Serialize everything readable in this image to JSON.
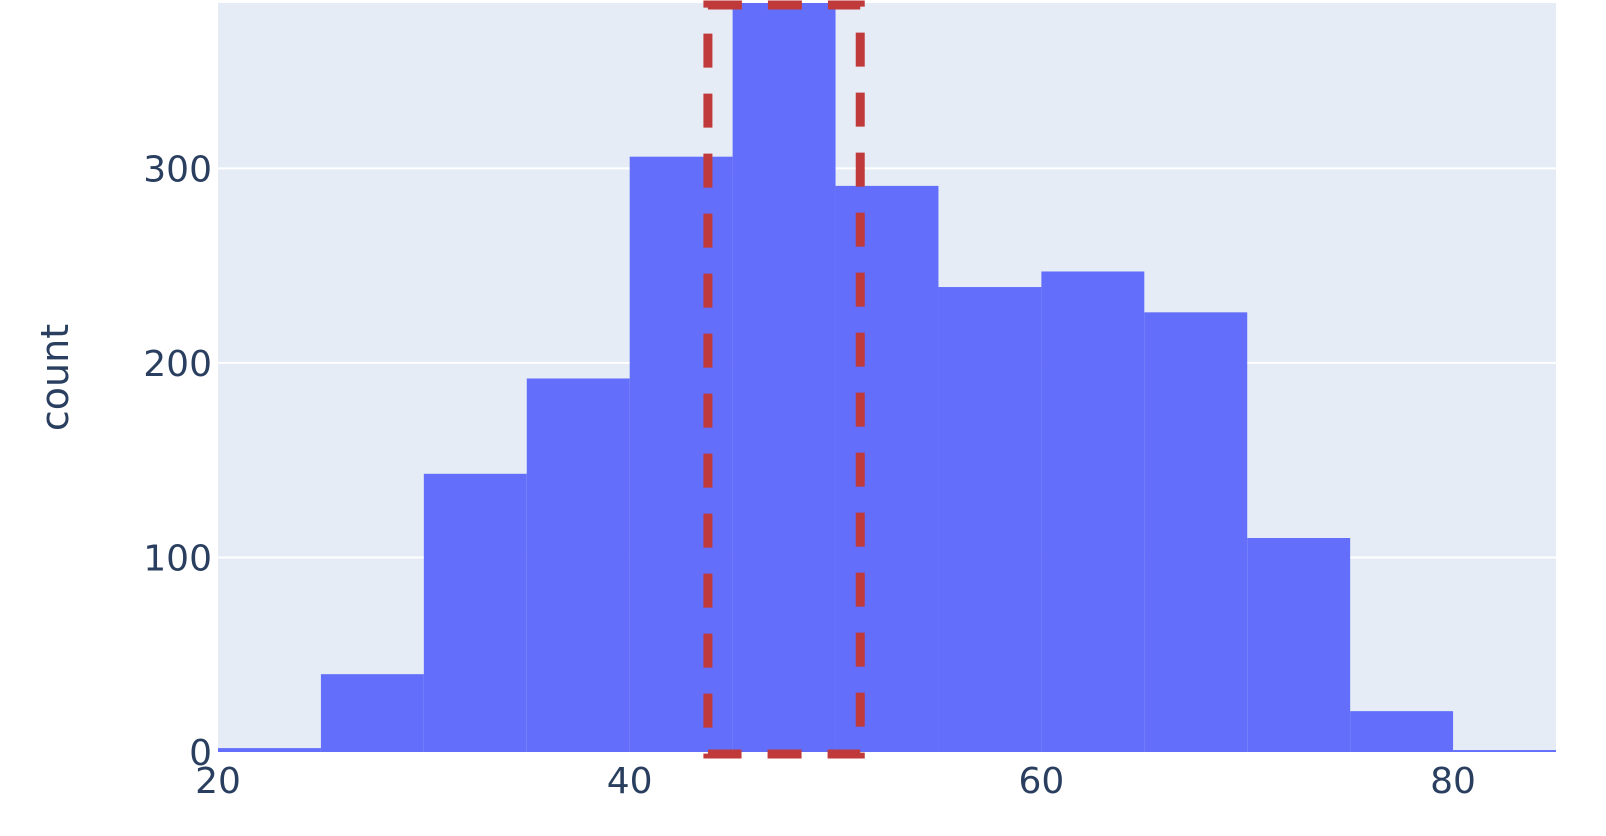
{
  "chart_data": {
    "type": "bar",
    "variant": "histogram",
    "ylabel": "count",
    "xlabel": "",
    "x_ticks": [
      20,
      40,
      60,
      80
    ],
    "y_ticks": [
      0,
      100,
      200,
      300
    ],
    "xlim": [
      20,
      85
    ],
    "ylim": [
      0,
      385
    ],
    "grid": true,
    "bins": [
      {
        "start": 20,
        "end": 25,
        "value": 2
      },
      {
        "start": 25,
        "end": 30,
        "value": 40
      },
      {
        "start": 30,
        "end": 35,
        "value": 143
      },
      {
        "start": 35,
        "end": 40,
        "value": 192
      },
      {
        "start": 40,
        "end": 45,
        "value": 306
      },
      {
        "start": 45,
        "end": 50,
        "value": 385
      },
      {
        "start": 50,
        "end": 55,
        "value": 291
      },
      {
        "start": 55,
        "end": 60,
        "value": 239
      },
      {
        "start": 60,
        "end": 65,
        "value": 247
      },
      {
        "start": 65,
        "end": 70,
        "value": 226
      },
      {
        "start": 70,
        "end": 75,
        "value": 110
      },
      {
        "start": 75,
        "end": 80,
        "value": 21
      },
      {
        "start": 80,
        "end": 85,
        "value": 1
      }
    ],
    "highlight": {
      "x_start": 43.8,
      "x_end": 51.2,
      "y_start": 0,
      "y_end": 385
    },
    "colors": {
      "bar": "#636efa",
      "plot_bg": "#e5ecf6",
      "grid": "#ffffff",
      "highlight": "#c0393b",
      "text": "#2a3f5f"
    }
  }
}
